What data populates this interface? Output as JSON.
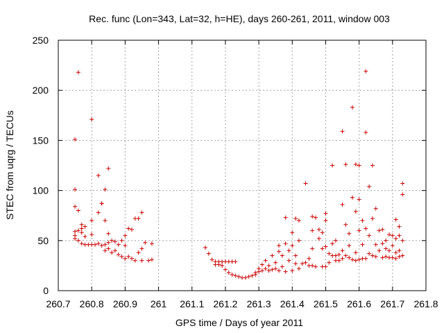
{
  "chart_data": {
    "type": "scatter",
    "title": "Rec. func (Lon=343, Lat=32, h=HE), days 260-261, 2011, window 003",
    "xlabel": "GPS time / Days of year 2011",
    "ylabel": "STEC from uqrg / TECUs",
    "xlim": [
      260.7,
      261.8
    ],
    "ylim": [
      0,
      250
    ],
    "xticks": [
      260.7,
      260.8,
      260.9,
      261.0,
      261.1,
      261.2,
      261.3,
      261.4,
      261.5,
      261.6,
      261.7,
      261.8
    ],
    "xtick_labels": [
      "260.7",
      "260.8",
      "260.9",
      "261",
      "261.1",
      "261.2",
      "261.3",
      "261.4",
      "261.5",
      "261.6",
      "261.7",
      "261.8"
    ],
    "yticks": [
      0,
      50,
      100,
      150,
      200,
      250
    ],
    "ytick_labels": [
      "0",
      "50",
      "100",
      "150",
      "200",
      "250"
    ],
    "grid": true,
    "marker": "+",
    "color": "#cc0000",
    "series": [
      {
        "name": "STEC",
        "points": [
          [
            260.75,
            151
          ],
          [
            260.75,
            101
          ],
          [
            260.75,
            84
          ],
          [
            260.75,
            59
          ],
          [
            260.75,
            55
          ],
          [
            260.75,
            52
          ],
          [
            260.76,
            218
          ],
          [
            260.76,
            80
          ],
          [
            260.76,
            60
          ],
          [
            260.76,
            50
          ],
          [
            260.77,
            66
          ],
          [
            260.77,
            62
          ],
          [
            260.77,
            58
          ],
          [
            260.77,
            47
          ],
          [
            260.78,
            64
          ],
          [
            260.78,
            54
          ],
          [
            260.78,
            46
          ],
          [
            260.79,
            46
          ],
          [
            260.8,
            171
          ],
          [
            260.8,
            70
          ],
          [
            260.8,
            56
          ],
          [
            260.8,
            46
          ],
          [
            260.81,
            46
          ],
          [
            260.82,
            115
          ],
          [
            260.82,
            78
          ],
          [
            260.82,
            47
          ],
          [
            260.83,
            87
          ],
          [
            260.83,
            87
          ],
          [
            260.83,
            45
          ],
          [
            260.84,
            101
          ],
          [
            260.84,
            70
          ],
          [
            260.84,
            46
          ],
          [
            260.84,
            40
          ],
          [
            260.85,
            122
          ],
          [
            260.85,
            57
          ],
          [
            260.85,
            48
          ],
          [
            260.85,
            42
          ],
          [
            260.86,
            38
          ],
          [
            260.86,
            50
          ],
          [
            260.87,
            49
          ],
          [
            260.87,
            40
          ],
          [
            260.88,
            46
          ],
          [
            260.88,
            36
          ],
          [
            260.89,
            50
          ],
          [
            260.89,
            34
          ],
          [
            260.9,
            55
          ],
          [
            260.9,
            45
          ],
          [
            260.9,
            32
          ],
          [
            260.91,
            62
          ],
          [
            260.91,
            34
          ],
          [
            260.92,
            61
          ],
          [
            260.92,
            32
          ],
          [
            260.93,
            72
          ],
          [
            260.93,
            30
          ],
          [
            260.94,
            72
          ],
          [
            260.94,
            38
          ],
          [
            260.95,
            78
          ],
          [
            260.95,
            42
          ],
          [
            260.95,
            30
          ],
          [
            260.96,
            48
          ],
          [
            260.97,
            30
          ],
          [
            260.98,
            47
          ],
          [
            260.98,
            31
          ],
          [
            261.14,
            43
          ],
          [
            261.15,
            37
          ],
          [
            261.16,
            31
          ],
          [
            261.17,
            29
          ],
          [
            261.17,
            26
          ],
          [
            261.18,
            29
          ],
          [
            261.18,
            26
          ],
          [
            261.19,
            29
          ],
          [
            261.19,
            25
          ],
          [
            261.2,
            29
          ],
          [
            261.2,
            21
          ],
          [
            261.21,
            29
          ],
          [
            261.21,
            18
          ],
          [
            261.22,
            29
          ],
          [
            261.22,
            16
          ],
          [
            261.23,
            29
          ],
          [
            261.23,
            15
          ],
          [
            261.24,
            14
          ],
          [
            261.25,
            13
          ],
          [
            261.26,
            13
          ],
          [
            261.27,
            14
          ],
          [
            261.28,
            15
          ],
          [
            261.29,
            16
          ],
          [
            261.29,
            18
          ],
          [
            261.3,
            19
          ],
          [
            261.3,
            22
          ],
          [
            261.31,
            20
          ],
          [
            261.31,
            26
          ],
          [
            261.32,
            22
          ],
          [
            261.32,
            30
          ],
          [
            261.33,
            20
          ],
          [
            261.33,
            25
          ],
          [
            261.34,
            35
          ],
          [
            261.34,
            21
          ],
          [
            261.35,
            22
          ],
          [
            261.35,
            28
          ],
          [
            261.36,
            45
          ],
          [
            261.36,
            39
          ],
          [
            261.36,
            20
          ],
          [
            261.37,
            35
          ],
          [
            261.37,
            24
          ],
          [
            261.38,
            73
          ],
          [
            261.38,
            47
          ],
          [
            261.38,
            19
          ],
          [
            261.39,
            40
          ],
          [
            261.39,
            30
          ],
          [
            261.4,
            58
          ],
          [
            261.4,
            45
          ],
          [
            261.4,
            20
          ],
          [
            261.41,
            72
          ],
          [
            261.41,
            35
          ],
          [
            261.41,
            27
          ],
          [
            261.42,
            70
          ],
          [
            261.42,
            50
          ],
          [
            261.42,
            22
          ],
          [
            261.43,
            27
          ],
          [
            261.44,
            107
          ],
          [
            261.44,
            28
          ],
          [
            261.45,
            32
          ],
          [
            261.45,
            25
          ],
          [
            261.46,
            74
          ],
          [
            261.46,
            60
          ],
          [
            261.46,
            42
          ],
          [
            261.46,
            25
          ],
          [
            261.47,
            73
          ],
          [
            261.47,
            24
          ],
          [
            261.48,
            61
          ],
          [
            261.48,
            52
          ],
          [
            261.49,
            58
          ],
          [
            261.49,
            42
          ],
          [
            261.49,
            24
          ],
          [
            261.5,
            77
          ],
          [
            261.5,
            70
          ],
          [
            261.5,
            44
          ],
          [
            261.5,
            24
          ],
          [
            261.51,
            37
          ],
          [
            261.51,
            28
          ],
          [
            261.52,
            125
          ],
          [
            261.52,
            47
          ],
          [
            261.52,
            35
          ],
          [
            261.53,
            50
          ],
          [
            261.53,
            35
          ],
          [
            261.53,
            30
          ],
          [
            261.54,
            36
          ],
          [
            261.54,
            30
          ],
          [
            261.55,
            159
          ],
          [
            261.55,
            86
          ],
          [
            261.55,
            40
          ],
          [
            261.55,
            32
          ],
          [
            261.56,
            126
          ],
          [
            261.56,
            66
          ],
          [
            261.56,
            35
          ],
          [
            261.57,
            57
          ],
          [
            261.57,
            45
          ],
          [
            261.57,
            33
          ],
          [
            261.58,
            183
          ],
          [
            261.58,
            93
          ],
          [
            261.58,
            31
          ],
          [
            261.59,
            126
          ],
          [
            261.59,
            79
          ],
          [
            261.59,
            38
          ],
          [
            261.59,
            30
          ],
          [
            261.6,
            125
          ],
          [
            261.6,
            91
          ],
          [
            261.6,
            60
          ],
          [
            261.6,
            31
          ],
          [
            261.61,
            70
          ],
          [
            261.61,
            46
          ],
          [
            261.61,
            32
          ],
          [
            261.62,
            219
          ],
          [
            261.62,
            158
          ],
          [
            261.62,
            62
          ],
          [
            261.62,
            32
          ],
          [
            261.63,
            104
          ],
          [
            261.63,
            55
          ],
          [
            261.63,
            37
          ],
          [
            261.64,
            125
          ],
          [
            261.64,
            72
          ],
          [
            261.64,
            35
          ],
          [
            261.65,
            82
          ],
          [
            261.65,
            46
          ],
          [
            261.65,
            34
          ],
          [
            261.66,
            60
          ],
          [
            261.66,
            40
          ],
          [
            261.67,
            61
          ],
          [
            261.67,
            47
          ],
          [
            261.67,
            33
          ],
          [
            261.68,
            50
          ],
          [
            261.68,
            42
          ],
          [
            261.68,
            34
          ],
          [
            261.69,
            56
          ],
          [
            261.69,
            40
          ],
          [
            261.69,
            33
          ],
          [
            261.7,
            55
          ],
          [
            261.7,
            45
          ],
          [
            261.7,
            33
          ],
          [
            261.71,
            71
          ],
          [
            261.71,
            52
          ],
          [
            261.71,
            38
          ],
          [
            261.71,
            32
          ],
          [
            261.72,
            64
          ],
          [
            261.72,
            55
          ],
          [
            261.72,
            40
          ],
          [
            261.72,
            34
          ],
          [
            261.73,
            107
          ],
          [
            261.73,
            96
          ],
          [
            261.73,
            50
          ],
          [
            261.73,
            35
          ]
        ]
      }
    ]
  }
}
